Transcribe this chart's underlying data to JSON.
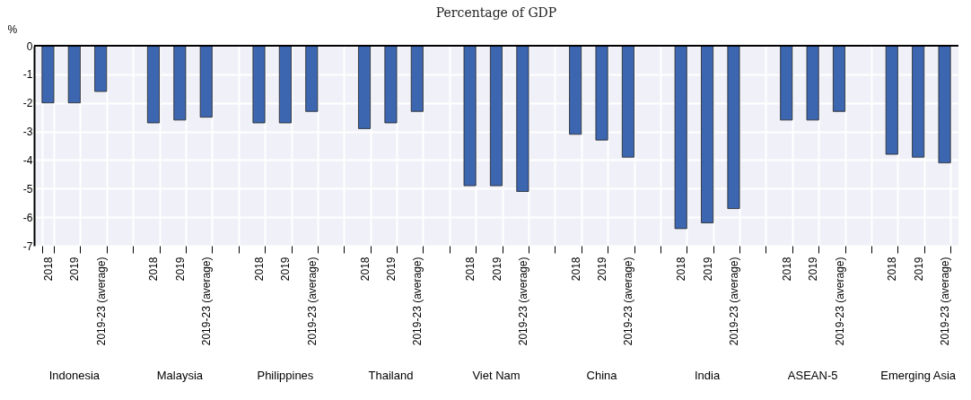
{
  "chart_data": {
    "type": "bar",
    "subtitle": "Percentage of GDP",
    "ylabel": "%",
    "categories": [
      "2018",
      "2019",
      "2019-23 (average)",
      null,
      "2018",
      "2019",
      "2019-23 (average)",
      null,
      "2018",
      "2019",
      "2019-23 (average)",
      null,
      "2018",
      "2019",
      "2019-23 (average)",
      null,
      "2018",
      "2019",
      "2019-23 (average)",
      null,
      "2018",
      "2019",
      "2019-23 (average)",
      null,
      "2018",
      "2019",
      "2019-23 (average)",
      null,
      "2018",
      "2019",
      "2019-23 (average)",
      null,
      "2018",
      "2019",
      "2019-23 (average)"
    ],
    "values": [
      -2,
      -2,
      -1.6,
      null,
      -2.7,
      -2.6,
      -2.5,
      null,
      -2.7,
      -2.7,
      -2.3,
      null,
      -2.9,
      -2.7,
      -2.3,
      null,
      -4.9,
      -4.9,
      -5.1,
      null,
      -3.1,
      -3.3,
      -3.9,
      null,
      -6.4,
      -6.2,
      -5.7,
      null,
      -2.6,
      -2.6,
      -2.3,
      null,
      -3.8,
      -3.9,
      -4.1
    ],
    "color": "#3d66b0",
    "annotations": [
      "Indonesia",
      "Malaysia",
      "Philippines",
      "Thailand",
      "Viet Nam",
      "China",
      "India",
      "ASEAN-5",
      "Emerging Asia"
    ],
    "ylim": [
      -7,
      0
    ],
    "yticks": [
      0,
      -1,
      -2,
      -3,
      -4,
      -5,
      -6,
      -7
    ],
    "grid": true
  }
}
